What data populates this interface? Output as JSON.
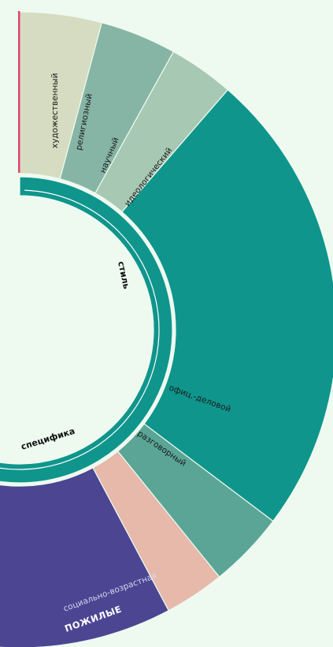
{
  "chart_data": {
    "type": "sunburst",
    "inner_ring": [
      {
        "label": "стиль",
        "color": "#0f958c"
      },
      {
        "label": "специфика",
        "color": "#4b4592"
      }
    ],
    "outer_ring": [
      {
        "label": "художественный",
        "group": "стиль",
        "color": "#d5dcc1",
        "text_color": "#1a1a1a"
      },
      {
        "label": "религиозный",
        "group": "стиль",
        "color": "#86b5a5",
        "text_color": "#1a1a1a"
      },
      {
        "label": "научный",
        "group": "стиль",
        "color": "#a7c8b2",
        "text_color": "#1a1a1a"
      },
      {
        "label": "идеологический",
        "group": "стиль",
        "color": "#0f958c",
        "text_color": "#1a1a1a"
      },
      {
        "label": "офиц.-деловой",
        "group": "стиль",
        "color": "#5aa596",
        "text_color": "#1a1a1a"
      },
      {
        "label": "разговорный",
        "group": "стиль",
        "color": "#e6b9ab",
        "text_color": "#1a1a1a"
      },
      {
        "label": "социально-возрастная",
        "group": "специфика",
        "color": "#4b4592",
        "text_color": "#d8d8ee"
      }
    ],
    "sublabel": "ПОЖИЛЫЕ",
    "accent_color": "#e0436c"
  }
}
